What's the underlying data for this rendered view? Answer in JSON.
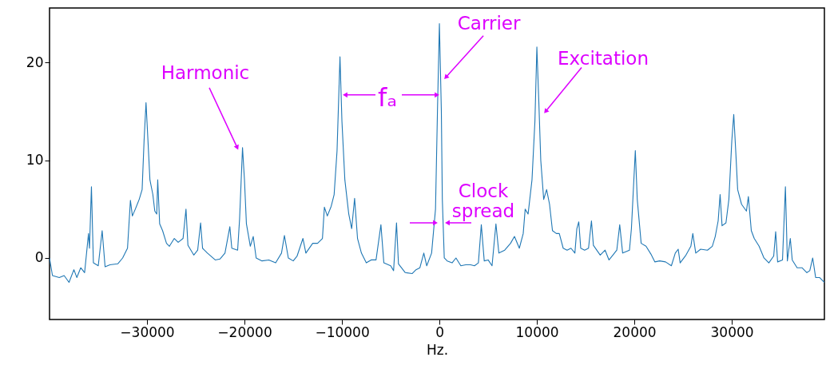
{
  "chart_data": {
    "type": "line",
    "xlabel": "Hz.",
    "xlim": [
      -40000,
      39500
    ],
    "ylim": [
      -6.3,
      25.6
    ],
    "xticks": [
      {
        "value": -30000,
        "label": "−30000"
      },
      {
        "value": -20000,
        "label": "−20000"
      },
      {
        "value": -10000,
        "label": "−10000"
      },
      0,
      10000,
      20000,
      30000
    ],
    "yticks": [
      0,
      10,
      20
    ],
    "grid": false,
    "line_style": "solid",
    "series": [
      {
        "color": "#1f77b4",
        "x": [
          -40000,
          -39700,
          -39000,
          -38500,
          -38000,
          -37500,
          -37200,
          -36800,
          -36400,
          -36000,
          -35900,
          -35700,
          -35500,
          -35000,
          -34600,
          -34300,
          -33800,
          -33000,
          -32500,
          -32000,
          -31700,
          -31500,
          -31200,
          -30800,
          -30500,
          -30300,
          -30100,
          -29900,
          -29700,
          -29400,
          -29200,
          -29000,
          -28900,
          -28700,
          -28400,
          -28000,
          -27700,
          -27200,
          -26800,
          -26300,
          -26000,
          -25800,
          -25200,
          -24800,
          -24500,
          -24300,
          -23800,
          -23000,
          -22500,
          -22000,
          -21500,
          -21300,
          -20700,
          -20500,
          -20200,
          -20000,
          -19800,
          -19400,
          -19100,
          -18800,
          -18200,
          -17500,
          -16800,
          -16200,
          -15900,
          -15500,
          -15000,
          -14600,
          -14000,
          -13700,
          -13000,
          -12500,
          -12000,
          -11800,
          -11500,
          -11100,
          -10800,
          -10500,
          -10200,
          -10000,
          -9700,
          -9300,
          -9000,
          -8700,
          -8400,
          -8000,
          -7500,
          -7000,
          -6500,
          -6000,
          -5700,
          -5000,
          -4700,
          -4400,
          -4200,
          -3500,
          -2800,
          -2400,
          -2000,
          -1600,
          -1300,
          -800,
          -400,
          -200,
          0,
          200,
          300,
          500,
          800,
          1300,
          1700,
          2200,
          2700,
          3200,
          3600,
          4000,
          4300,
          4600,
          5000,
          5400,
          5800,
          6100,
          6700,
          7300,
          7700,
          8200,
          8600,
          8800,
          9100,
          9500,
          9800,
          10000,
          10200,
          10400,
          10700,
          11000,
          11300,
          11600,
          12000,
          12300,
          12700,
          13100,
          13500,
          13900,
          14100,
          14300,
          14500,
          14900,
          15300,
          15600,
          15800,
          16500,
          17000,
          17400,
          17800,
          18200,
          18500,
          18800,
          19500,
          19700,
          20100,
          20300,
          20700,
          21200,
          21700,
          22100,
          22600,
          23200,
          23800,
          24200,
          24500,
          24700,
          25300,
          25800,
          26000,
          26300,
          26800,
          27500,
          28000,
          28300,
          28600,
          28800,
          29000,
          29400,
          29700,
          30000,
          30200,
          30400,
          30600,
          31000,
          31500,
          31700,
          32000,
          32300,
          32800,
          33300,
          33800,
          34300,
          34500,
          34700,
          35200,
          35500,
          35700,
          36000,
          36200,
          36700,
          37200,
          37700,
          38000,
          38300,
          38600,
          39000,
          39500
        ],
        "values": [
          0,
          -1.8,
          -2.0,
          -1.8,
          -2.5,
          -1.2,
          -2.0,
          -1.0,
          -1.5,
          2.5,
          1.0,
          7.3,
          -0.5,
          -0.8,
          2.8,
          -0.9,
          -0.7,
          -0.6,
          0.0,
          1.0,
          5.9,
          4.3,
          5.0,
          6.0,
          7.0,
          12,
          15.9,
          12,
          8,
          6.5,
          4.8,
          4.5,
          8.0,
          3.5,
          2.8,
          1.5,
          1.2,
          2.0,
          1.6,
          2.0,
          5.0,
          1.3,
          0.3,
          0.8,
          3.6,
          1.0,
          0.5,
          -0.2,
          -0.1,
          0.5,
          3.2,
          1.0,
          0.8,
          4,
          11.3,
          8,
          3.5,
          1.2,
          2.2,
          0.0,
          -0.3,
          -0.2,
          -0.5,
          0.5,
          2.3,
          0.0,
          -0.3,
          0.2,
          2.0,
          0.5,
          1.5,
          1.5,
          2.0,
          5.2,
          4.3,
          5.3,
          6.5,
          11,
          20.6,
          14,
          8,
          4.5,
          3.0,
          6.1,
          2.0,
          0.5,
          -0.5,
          -0.2,
          -0.2,
          3.4,
          -0.5,
          -0.8,
          -1.3,
          3.6,
          -0.6,
          -1.5,
          -1.6,
          -1.2,
          -1.0,
          0.5,
          -0.8,
          0.5,
          5,
          15,
          24.0,
          15,
          6,
          0,
          -0.3,
          -0.5,
          0.0,
          -0.8,
          -0.7,
          -0.7,
          -0.8,
          -0.5,
          3.4,
          -0.3,
          -0.2,
          -0.8,
          3.5,
          0.5,
          0.8,
          1.5,
          2.2,
          1.0,
          2.5,
          5.0,
          4.5,
          8.0,
          14,
          21.6,
          16,
          10,
          6.0,
          7.0,
          5.5,
          2.8,
          2.5,
          2.5,
          1.0,
          0.8,
          1.0,
          0.5,
          3.0,
          3.7,
          1.0,
          0.8,
          1.0,
          3.8,
          1.3,
          0.3,
          0.8,
          -0.2,
          0.3,
          0.8,
          3.4,
          0.5,
          0.8,
          3.0,
          11.0,
          6,
          1.5,
          1.2,
          0.4,
          -0.4,
          -0.3,
          -0.4,
          -0.8,
          0.5,
          0.9,
          -0.5,
          0.3,
          1.2,
          2.5,
          0.5,
          0.9,
          0.8,
          1.2,
          2.2,
          3.8,
          6.5,
          3.3,
          3.6,
          6.0,
          12,
          14.7,
          11,
          7.0,
          5.5,
          4.8,
          6.3,
          2.8,
          2.0,
          1.2,
          0.0,
          -0.5,
          0.2,
          2.7,
          -0.4,
          -0.2,
          7.3,
          -0.3,
          2.0,
          -0.2,
          -1.0,
          -1.0,
          -1.5,
          -1.3,
          0.0,
          -2.0,
          -2.0,
          -2.5
        ]
      }
    ],
    "annotations": [
      {
        "text": "Harmonic",
        "x": -20740,
        "y": 11.3
      },
      {
        "text": "fₐ",
        "x": -250,
        "y": 16.7
      },
      {
        "text": "Carrier",
        "x": 660,
        "y": 18.5
      },
      {
        "text": "Excitation",
        "x": 10900,
        "y": 15.0
      },
      {
        "text": "Clock\nspread",
        "x": 160,
        "y": 3.6
      }
    ]
  }
}
